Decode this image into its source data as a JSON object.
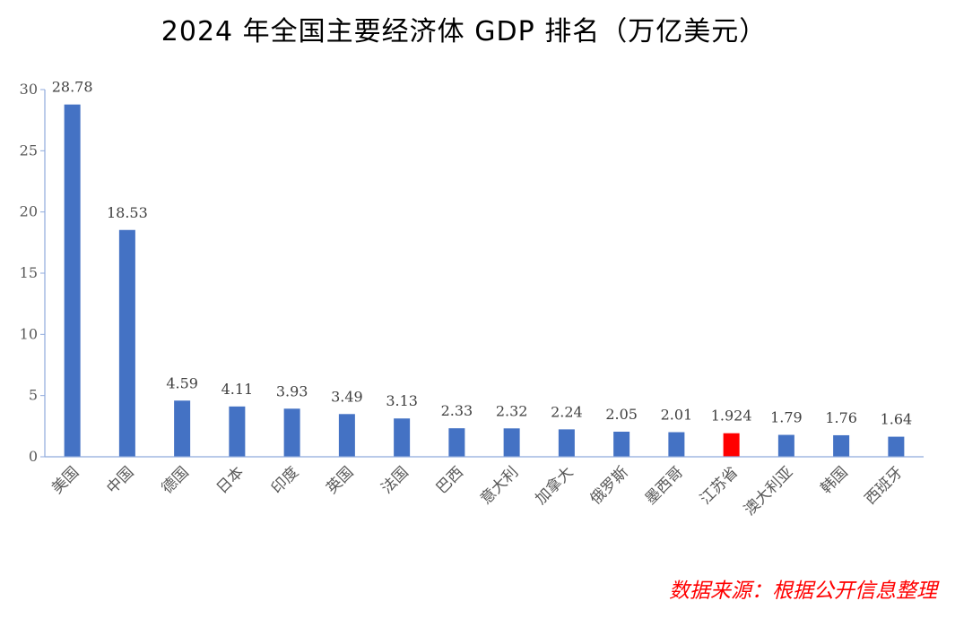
{
  "title": "2024 年全国主要经济体 GDP 排名（万亿美元）",
  "source_note": "数据来源：根据公开信息整理",
  "colors": {
    "bar_default": "#4472C4",
    "bar_highlight": "#FF0000",
    "axis": "#595959"
  },
  "chart_data": {
    "type": "bar",
    "title": "2024 年全国主要经济体 GDP 排名（万亿美元）",
    "categories": [
      "美国",
      "中国",
      "德国",
      "日本",
      "印度",
      "英国",
      "法国",
      "巴西",
      "意大利",
      "加拿大",
      "俄罗斯",
      "墨西哥",
      "江苏省",
      "澳大利亚",
      "韩国",
      "西班牙"
    ],
    "values": [
      28.78,
      18.53,
      4.59,
      4.11,
      3.93,
      3.49,
      3.13,
      2.33,
      2.32,
      2.24,
      2.05,
      2.01,
      1.924,
      1.79,
      1.76,
      1.64
    ],
    "value_labels": [
      "28.78",
      "18.53",
      "4.59",
      "4.11",
      "3.93",
      "3.49",
      "3.13",
      "2.33",
      "2.32",
      "2.24",
      "2.05",
      "2.01",
      "1.924",
      "1.79",
      "1.76",
      "1.64"
    ],
    "highlight_category": "江苏省",
    "yticks": [
      "0",
      "5",
      "10",
      "15",
      "20",
      "25",
      "30"
    ],
    "ylim": [
      0,
      30
    ],
    "xlabel": "",
    "ylabel": "",
    "grid": false,
    "legend": "none"
  }
}
